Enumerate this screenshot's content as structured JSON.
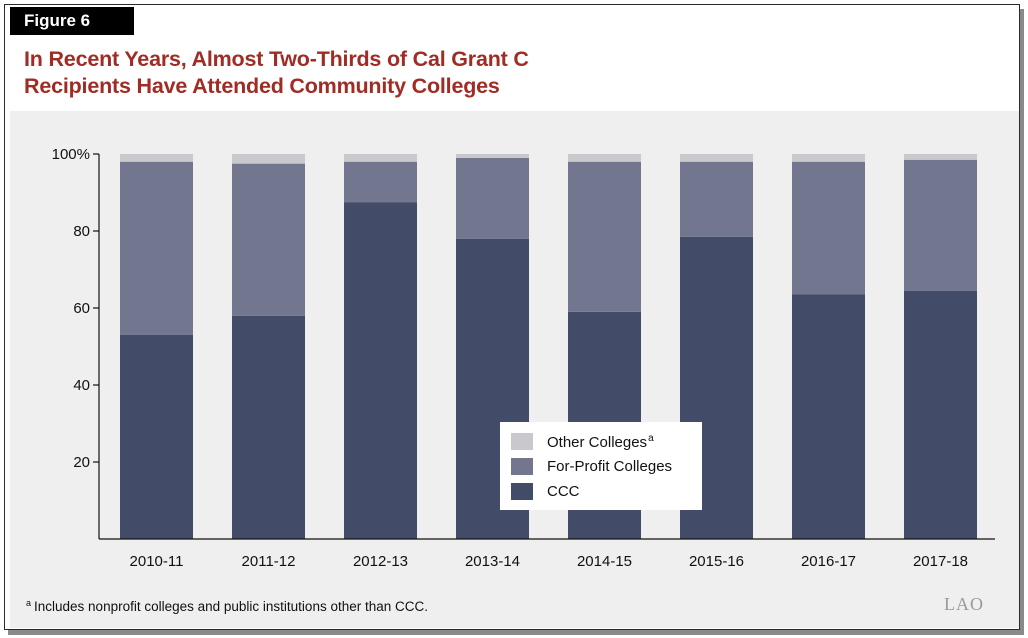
{
  "figure_label": "Figure 6",
  "title_lines": [
    "In Recent Years, Almost Two-Thirds of Cal Grant C",
    "Recipients Have Attended Community Colleges"
  ],
  "footnote": {
    "marker": "a",
    "text": "Includes nonprofit colleges and public institutions other than CCC."
  },
  "logo_text": "LAO",
  "colors": {
    "title": "#a02c25",
    "ccc": "#424c69",
    "for_profit": "#72768f",
    "other": "#c9c9cd",
    "background": "#efefef"
  },
  "legend": [
    {
      "label": "Other Colleges",
      "sup": "a",
      "color": "#c9c9cd"
    },
    {
      "label": "For-Profit Colleges",
      "sup": "",
      "color": "#72768f"
    },
    {
      "label": "CCC",
      "sup": "",
      "color": "#424c69"
    }
  ],
  "chart_data": {
    "type": "bar",
    "stacked": true,
    "title": "In Recent Years, Almost Two-Thirds of Cal Grant C Recipients Have Attended Community Colleges",
    "xlabel": "",
    "ylabel": "",
    "ylim": [
      0,
      100
    ],
    "yticks": [
      20,
      40,
      60,
      80,
      100
    ],
    "ytick_labels": [
      "20",
      "40",
      "60",
      "80",
      "100%"
    ],
    "grid": false,
    "legend_position": "bottom-center",
    "categories": [
      "2010-11",
      "2011-12",
      "2012-13",
      "2013-14",
      "2014-15",
      "2015-16",
      "2016-17",
      "2017-18"
    ],
    "series": [
      {
        "name": "CCC",
        "color": "#424c69",
        "values": [
          53,
          58,
          87.5,
          78,
          59,
          78.5,
          63.5,
          64.5
        ]
      },
      {
        "name": "For-Profit Colleges",
        "color": "#72768f",
        "values": [
          45,
          39.5,
          10.5,
          21,
          39,
          19.5,
          34.5,
          34
        ]
      },
      {
        "name": "Other Colleges",
        "color": "#c9c9cd",
        "values": [
          2,
          2.5,
          2,
          1,
          2,
          2,
          2,
          1.5
        ]
      }
    ]
  }
}
